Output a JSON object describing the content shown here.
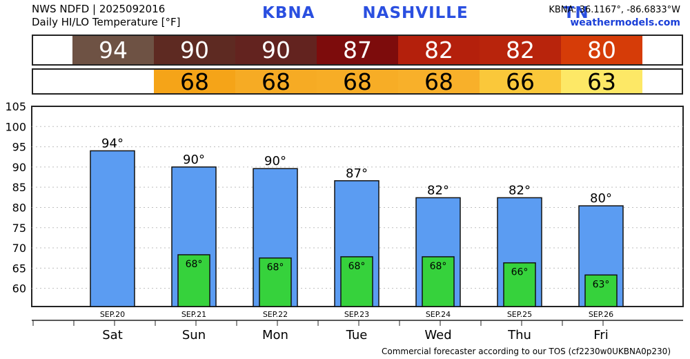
{
  "header": {
    "line1": "NWS NDFD | 2025092016",
    "line2": "Daily HI/LO Temperature [°F]",
    "station": "KBNA   NASHVILLE      TN",
    "coords": "KBNA: 36.1167°, -86.6833°W",
    "site": "weathermodels.com"
  },
  "hi_strip": {
    "values": [
      "94",
      "90",
      "90",
      "87",
      "82",
      "82",
      "80"
    ],
    "colors": [
      "#6e5244",
      "#5e2a22",
      "#63231f",
      "#7d0c0c",
      "#b4200c",
      "#b8240c",
      "#d63c08"
    ]
  },
  "lo_strip": {
    "values": [
      "68",
      "68",
      "68",
      "68",
      "66",
      "63"
    ],
    "colors": [
      "#f5a418",
      "#f6ab24",
      "#f7ad26",
      "#f8b02a",
      "#fac83a",
      "#fde866"
    ]
  },
  "chart_data": {
    "type": "bar",
    "categories": [
      "Sat",
      "Sun",
      "Mon",
      "Tue",
      "Wed",
      "Thu",
      "Fri"
    ],
    "dates": [
      "SEP.20",
      "SEP.21",
      "SEP.22",
      "SEP.23",
      "SEP.24",
      "SEP.25",
      "SEP.26"
    ],
    "series": [
      {
        "name": "HI",
        "values": [
          94,
          90,
          89.6,
          86.6,
          82.4,
          82.4,
          80.4
        ],
        "labels": [
          "94°",
          "90°",
          "90°",
          "87°",
          "82°",
          "82°",
          "80°"
        ],
        "color": "#5b9cf2"
      },
      {
        "name": "LO",
        "values": [
          null,
          68.3,
          67.5,
          67.8,
          67.8,
          66.3,
          63.3
        ],
        "labels": [
          "",
          "68°",
          "68°",
          "68°",
          "68°",
          "66°",
          "63°"
        ],
        "color": "#36d23c"
      }
    ],
    "ylim": [
      55.5,
      105
    ],
    "yticks": [
      60,
      65,
      70,
      75,
      80,
      85,
      90,
      95,
      100,
      105
    ],
    "grid": true
  },
  "footer": "Commercial forecaster according to our TOS (cf2230w0UKBNA0p230)"
}
